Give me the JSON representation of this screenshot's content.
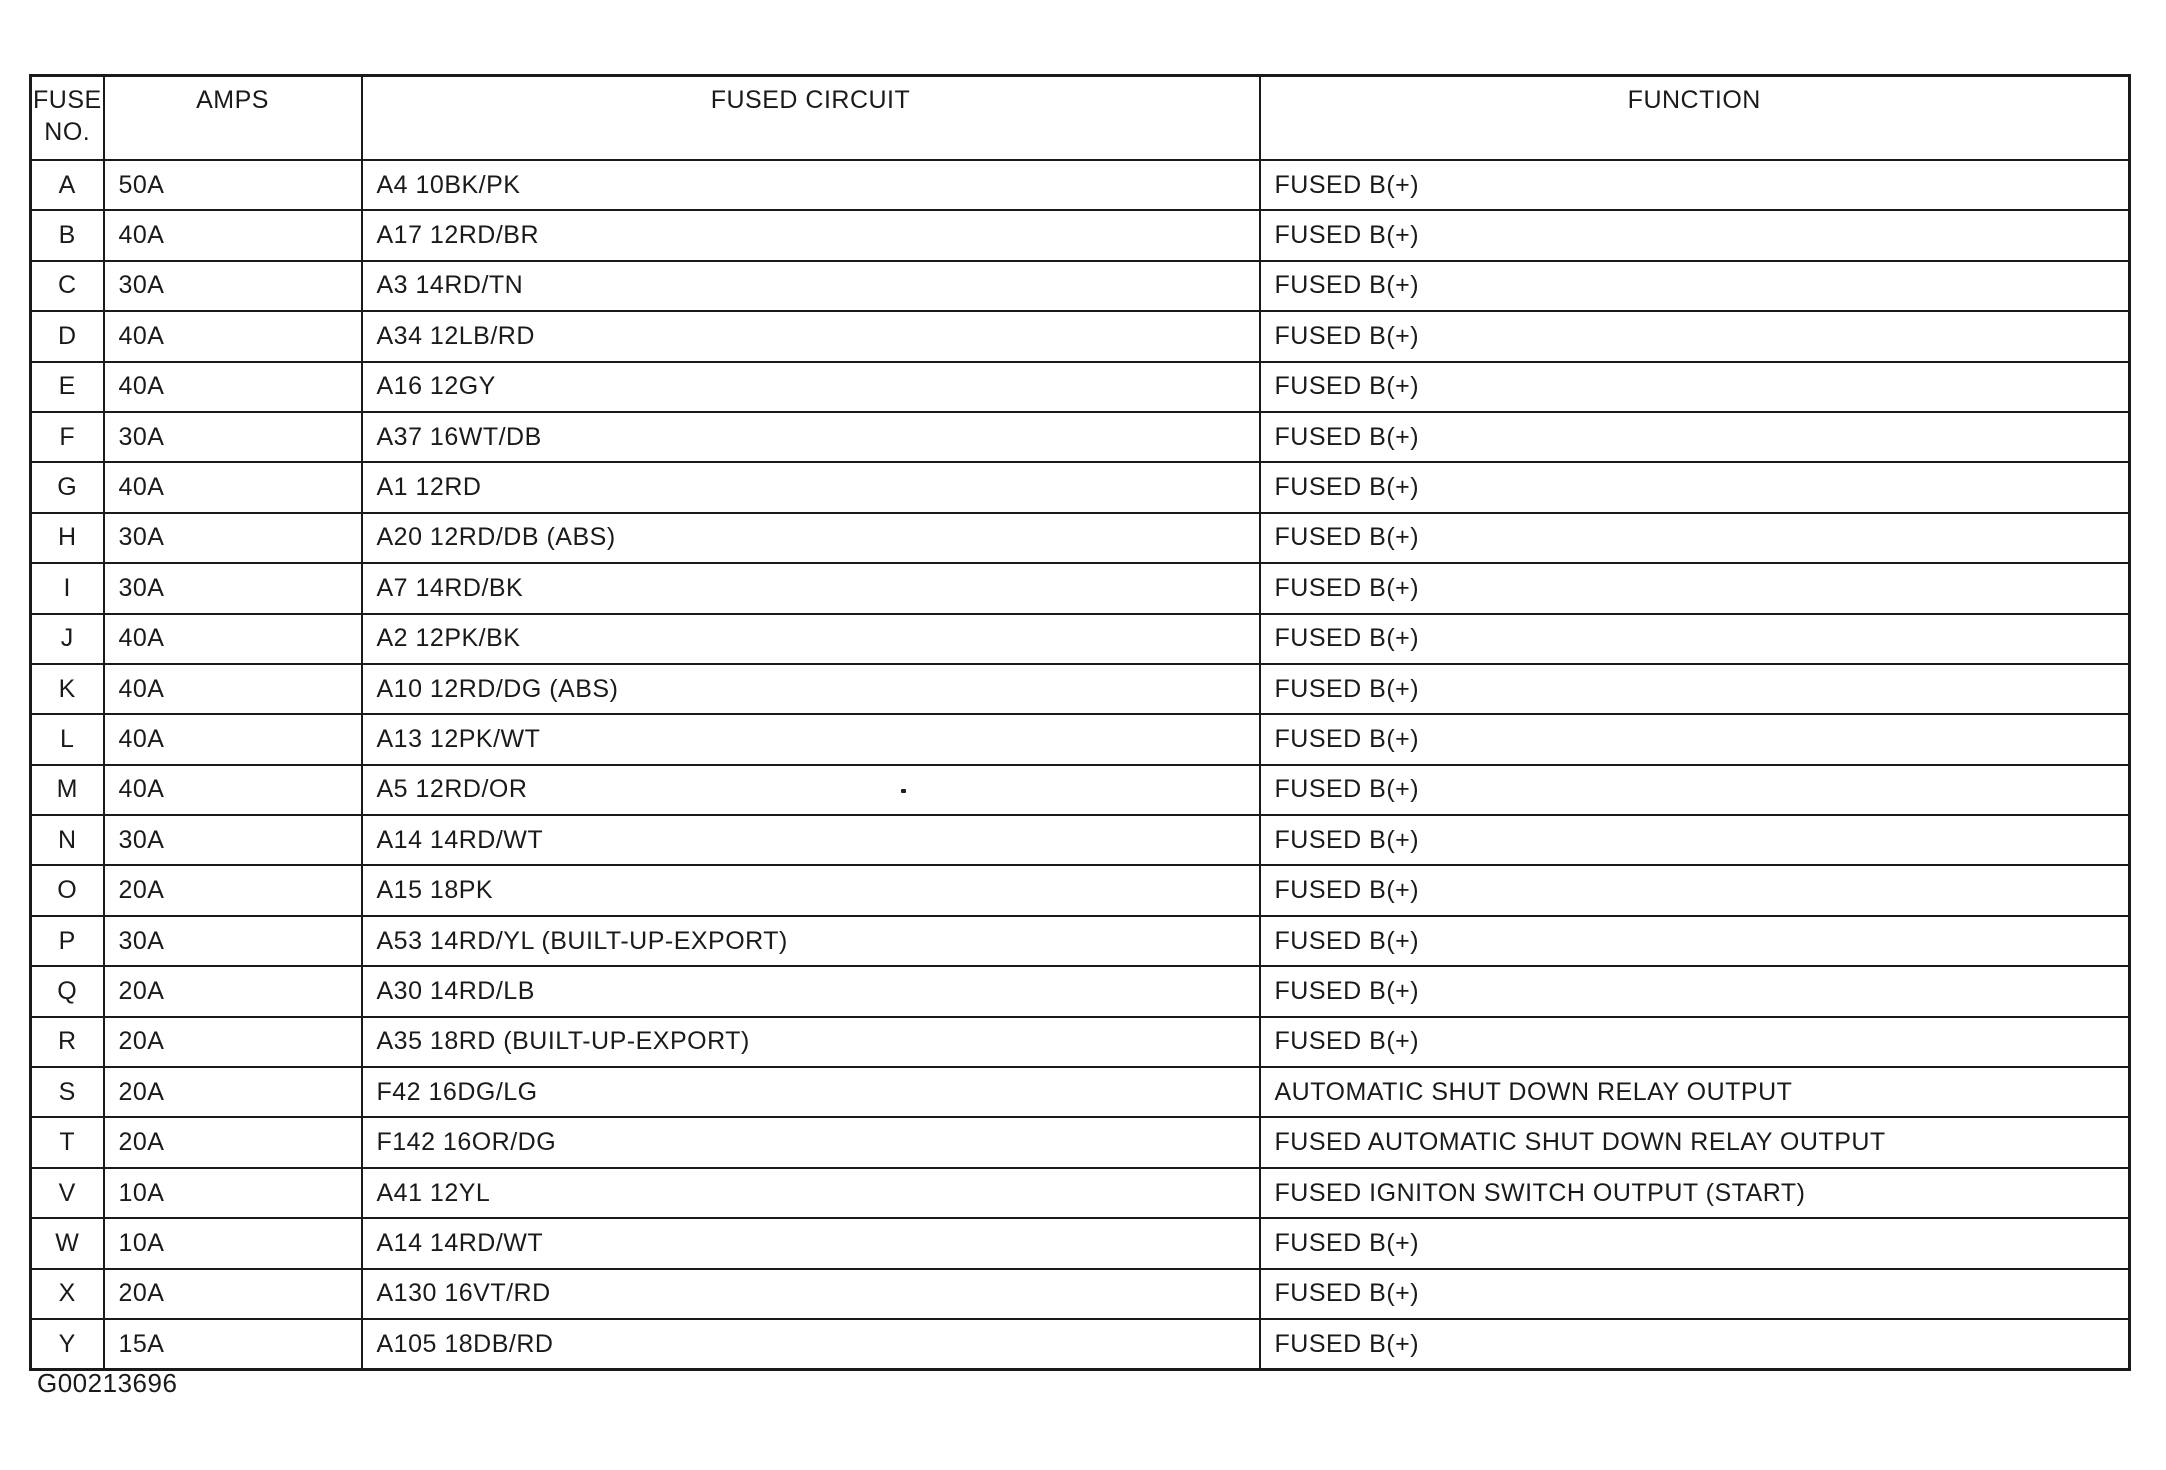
{
  "page": {
    "background_color": "#ffffff",
    "ink_color": "#1a1a1a"
  },
  "table": {
    "headers": {
      "fuse_no_line1": "FUSE",
      "fuse_no_line2": "NO.",
      "amps": "AMPS",
      "fused_circuit": "FUSED CIRCUIT",
      "function": "FUNCTION"
    },
    "rows": [
      {
        "no": "A",
        "amps": "50A",
        "circuit": "A4 10BK/PK",
        "function": "FUSED B(+)"
      },
      {
        "no": "B",
        "amps": "40A",
        "circuit": "A17 12RD/BR",
        "function": "FUSED B(+)"
      },
      {
        "no": "C",
        "amps": "30A",
        "circuit": "A3 14RD/TN",
        "function": "FUSED B(+)"
      },
      {
        "no": "D",
        "amps": "40A",
        "circuit": "A34 12LB/RD",
        "function": "FUSED B(+)"
      },
      {
        "no": "E",
        "amps": "40A",
        "circuit": "A16 12GY",
        "function": "FUSED B(+)"
      },
      {
        "no": "F",
        "amps": "30A",
        "circuit": "A37 16WT/DB",
        "function": "FUSED B(+)"
      },
      {
        "no": "G",
        "amps": "40A",
        "circuit": "A1 12RD",
        "function": "FUSED B(+)"
      },
      {
        "no": "H",
        "amps": "30A",
        "circuit": "A20 12RD/DB (ABS)",
        "function": "FUSED B(+)"
      },
      {
        "no": "I",
        "amps": "30A",
        "circuit": "A7 14RD/BK",
        "function": "FUSED B(+)"
      },
      {
        "no": "J",
        "amps": "40A",
        "circuit": "A2 12PK/BK",
        "function": "FUSED B(+)"
      },
      {
        "no": "K",
        "amps": "40A",
        "circuit": "A10 12RD/DG (ABS)",
        "function": "FUSED B(+)"
      },
      {
        "no": "L",
        "amps": "40A",
        "circuit": "A13 12PK/WT",
        "function": "FUSED B(+)"
      },
      {
        "no": "M",
        "amps": "40A",
        "circuit": "A5 12RD/OR",
        "function": "FUSED B(+)"
      },
      {
        "no": "N",
        "amps": "30A",
        "circuit": "A14 14RD/WT",
        "function": "FUSED B(+)"
      },
      {
        "no": "O",
        "amps": "20A",
        "circuit": "A15 18PK",
        "function": "FUSED B(+)"
      },
      {
        "no": "P",
        "amps": "30A",
        "circuit": "A53 14RD/YL (BUILT-UP-EXPORT)",
        "function": "FUSED B(+)"
      },
      {
        "no": "Q",
        "amps": "20A",
        "circuit": "A30 14RD/LB",
        "function": "FUSED B(+)"
      },
      {
        "no": "R",
        "amps": "20A",
        "circuit": "A35 18RD (BUILT-UP-EXPORT)",
        "function": "FUSED B(+)"
      },
      {
        "no": "S",
        "amps": "20A",
        "circuit": "F42 16DG/LG",
        "function": "AUTOMATIC SHUT DOWN RELAY OUTPUT"
      },
      {
        "no": "T",
        "amps": "20A",
        "circuit": "F142 16OR/DG",
        "function": "FUSED AUTOMATIC SHUT DOWN RELAY OUTPUT"
      },
      {
        "no": "V",
        "amps": "10A",
        "circuit": "A41 12YL",
        "function": "FUSED IGNITON SWITCH OUTPUT (START)"
      },
      {
        "no": "W",
        "amps": "10A",
        "circuit": "A14 14RD/WT",
        "function": "FUSED B(+)"
      },
      {
        "no": "X",
        "amps": "20A",
        "circuit": "A130 16VT/RD",
        "function": "FUSED B(+)"
      },
      {
        "no": "Y",
        "amps": "15A",
        "circuit": "A105 18DB/RD",
        "function": "FUSED B(+)"
      }
    ]
  },
  "footer": {
    "figure_id": "G00213696"
  }
}
